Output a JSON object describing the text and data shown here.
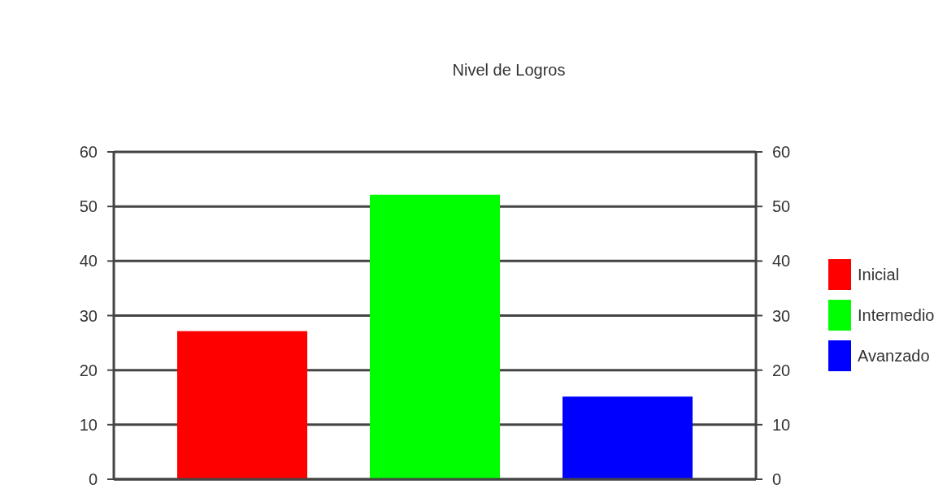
{
  "chart_data": {
    "type": "bar",
    "title": "Nivel de Logros",
    "categories": [
      null
    ],
    "series": [
      {
        "name": "Inicial",
        "color": "#ff0000",
        "values": [
          27
        ]
      },
      {
        "name": "Intermedio",
        "color": "#00ff00",
        "values": [
          52
        ]
      },
      {
        "name": "Avanzado",
        "color": "#0000ff",
        "values": [
          15
        ]
      }
    ],
    "ylim": [
      0,
      60
    ],
    "yticks": [
      0,
      10,
      20,
      30,
      40,
      50,
      60
    ],
    "y2lim": [
      0,
      60
    ],
    "y2ticks": [
      0,
      10,
      20,
      30,
      40,
      50,
      60
    ],
    "grid": "y",
    "legend": "right"
  }
}
